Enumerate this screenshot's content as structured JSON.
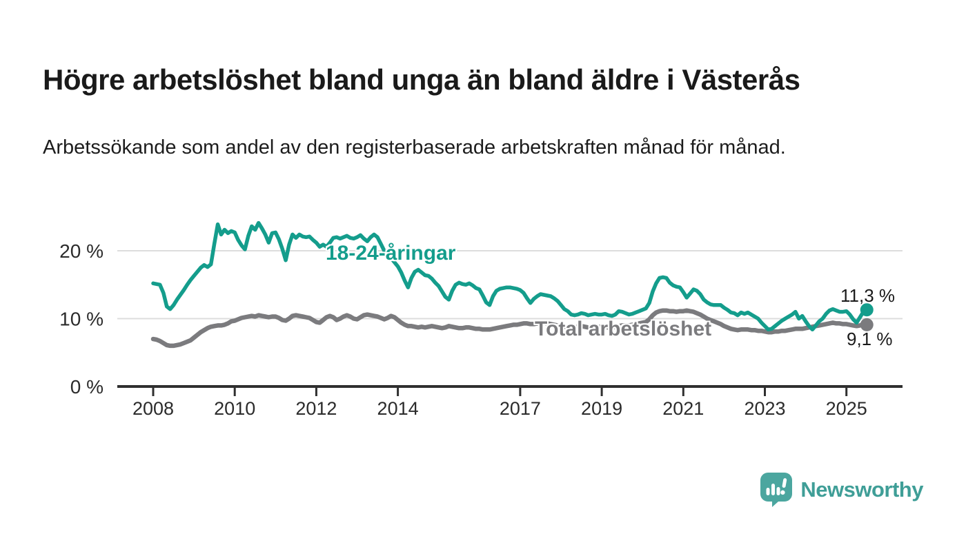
{
  "header": {
    "title": "Högre arbetslöshet bland unga än bland äldre i Västerås",
    "subtitle": "Arbetssökande som andel av den registerbaserade arbetskraften månad för månad."
  },
  "chart_data": {
    "type": "line",
    "title": "Högre arbetslöshet bland unga än bland äldre i Västerås",
    "subtitle": "Arbetssökande som andel av den registerbaserade arbetskraften månad för månad.",
    "frequency": "monthly",
    "x_start_year": 2008,
    "x_start_month": 1,
    "x_end_label": "2025-07",
    "x_tick_years": [
      2008,
      2010,
      2012,
      2014,
      2017,
      2019,
      2021,
      2023,
      2025
    ],
    "y_ticks": [
      {
        "value": 0,
        "label": "0 %"
      },
      {
        "value": 10,
        "label": "10 %"
      },
      {
        "value": 20,
        "label": "20 %"
      }
    ],
    "ylim": [
      0,
      26
    ],
    "grid": "horizontal",
    "legend_position": "inline-labels",
    "series": [
      {
        "name": "18-24-åringar",
        "color": "#149d8c",
        "end_label": "11,3 %",
        "last_value": 11.3,
        "values": [
          15.2,
          15.1,
          15.0,
          13.8,
          11.8,
          11.4,
          12.0,
          12.8,
          13.5,
          14.2,
          15.0,
          15.7,
          16.3,
          16.9,
          17.5,
          17.9,
          17.6,
          18.0,
          21.0,
          23.9,
          22.4,
          23.1,
          22.6,
          22.9,
          22.7,
          21.6,
          20.8,
          20.2,
          22.2,
          23.6,
          23.1,
          24.1,
          23.3,
          22.4,
          21.2,
          22.6,
          22.7,
          21.7,
          20.3,
          18.6,
          20.9,
          22.4,
          21.9,
          22.4,
          22.1,
          22.0,
          22.1,
          21.6,
          21.2,
          20.6,
          20.9,
          20.6,
          21.2,
          21.9,
          22.0,
          21.8,
          22.0,
          22.2,
          21.9,
          21.8,
          22.0,
          22.3,
          21.8,
          21.4,
          22.0,
          22.4,
          22.0,
          21.0,
          20.0,
          19.3,
          18.9,
          18.3,
          17.7,
          16.8,
          15.6,
          14.6,
          16.0,
          16.9,
          17.2,
          16.8,
          16.4,
          16.3,
          15.9,
          15.3,
          14.8,
          14.0,
          13.2,
          12.8,
          14.1,
          15.0,
          15.3,
          15.1,
          15.0,
          15.2,
          14.9,
          14.5,
          14.3,
          13.4,
          12.4,
          12.0,
          13.3,
          14.1,
          14.4,
          14.5,
          14.6,
          14.6,
          14.5,
          14.4,
          14.2,
          13.8,
          13.0,
          12.3,
          12.9,
          13.3,
          13.6,
          13.5,
          13.4,
          13.3,
          13.0,
          12.6,
          12.0,
          11.4,
          11.1,
          10.6,
          10.5,
          10.6,
          10.8,
          10.7,
          10.5,
          10.6,
          10.7,
          10.6,
          10.6,
          10.7,
          10.5,
          10.4,
          10.6,
          11.1,
          11.0,
          10.8,
          10.6,
          10.7,
          10.9,
          11.1,
          11.3,
          11.5,
          12.3,
          14.0,
          15.2,
          16.0,
          16.1,
          16.0,
          15.3,
          14.9,
          14.7,
          14.6,
          13.9,
          13.1,
          13.7,
          14.3,
          14.1,
          13.6,
          12.8,
          12.4,
          12.1,
          12.0,
          12.0,
          12.0,
          11.6,
          11.3,
          10.9,
          10.8,
          10.5,
          10.9,
          10.7,
          10.9,
          10.6,
          10.3,
          10.0,
          9.4,
          8.9,
          8.4,
          8.5,
          8.9,
          9.3,
          9.7,
          10.0,
          10.3,
          10.6,
          11.0,
          10.0,
          10.4,
          9.6,
          8.9,
          8.4,
          9.0,
          9.6,
          10.0,
          10.7,
          11.2,
          11.4,
          11.2,
          11.0,
          11.0,
          11.1,
          10.6,
          9.9,
          9.4,
          10.2,
          11.0,
          11.3
        ]
      },
      {
        "name": "Total arbetslöshet",
        "color": "#7b7b7e",
        "end_label": "9,1 %",
        "last_value": 9.1,
        "values": [
          7.0,
          6.9,
          6.7,
          6.4,
          6.1,
          6.0,
          6.0,
          6.1,
          6.2,
          6.4,
          6.6,
          6.8,
          7.2,
          7.6,
          8.0,
          8.3,
          8.6,
          8.8,
          8.9,
          9.0,
          9.0,
          9.1,
          9.3,
          9.6,
          9.7,
          9.9,
          10.1,
          10.2,
          10.3,
          10.4,
          10.3,
          10.5,
          10.4,
          10.3,
          10.2,
          10.3,
          10.3,
          10.1,
          9.8,
          9.7,
          10.0,
          10.4,
          10.5,
          10.4,
          10.3,
          10.2,
          10.1,
          9.8,
          9.5,
          9.4,
          9.8,
          10.2,
          10.4,
          10.2,
          9.8,
          10.0,
          10.3,
          10.5,
          10.3,
          10.0,
          9.9,
          10.2,
          10.5,
          10.6,
          10.5,
          10.4,
          10.3,
          10.1,
          9.9,
          10.1,
          10.4,
          10.2,
          9.8,
          9.4,
          9.1,
          8.9,
          8.9,
          8.8,
          8.7,
          8.8,
          8.7,
          8.8,
          8.9,
          8.8,
          8.7,
          8.6,
          8.7,
          8.9,
          8.8,
          8.7,
          8.6,
          8.6,
          8.7,
          8.7,
          8.6,
          8.5,
          8.5,
          8.4,
          8.4,
          8.4,
          8.5,
          8.6,
          8.7,
          8.8,
          8.9,
          9.0,
          9.1,
          9.1,
          9.2,
          9.3,
          9.3,
          9.2,
          9.2,
          9.3,
          9.4,
          9.4,
          9.3,
          9.2,
          9.1,
          9.0,
          8.9,
          8.8,
          8.8,
          8.7,
          8.7,
          8.8,
          8.9,
          8.8,
          8.7,
          8.7,
          8.8,
          8.8,
          8.8,
          8.8,
          8.7,
          8.7,
          8.8,
          8.9,
          9.0,
          9.0,
          9.0,
          9.1,
          9.2,
          9.3,
          9.4,
          9.5,
          9.9,
          10.5,
          10.9,
          11.1,
          11.2,
          11.2,
          11.1,
          11.1,
          11.0,
          11.1,
          11.1,
          11.2,
          11.1,
          11.0,
          10.8,
          10.6,
          10.3,
          10.0,
          9.8,
          9.6,
          9.4,
          9.2,
          8.9,
          8.7,
          8.5,
          8.4,
          8.3,
          8.4,
          8.4,
          8.4,
          8.3,
          8.3,
          8.2,
          8.2,
          8.1,
          8.0,
          8.0,
          8.1,
          8.1,
          8.2,
          8.2,
          8.3,
          8.4,
          8.5,
          8.5,
          8.5,
          8.6,
          8.7,
          8.8,
          8.9,
          9.0,
          9.1,
          9.2,
          9.3,
          9.4,
          9.3,
          9.3,
          9.2,
          9.2,
          9.1,
          9.0,
          8.9,
          9.0,
          9.2,
          9.1
        ]
      }
    ],
    "colors": {
      "grid": "#dcdcdc",
      "axis": "#2f2f2f",
      "tick_label": "#2b2b2b",
      "value_label": "#1a1a1a"
    }
  },
  "footer": {
    "brand": "Newsworthy",
    "logo_icon": "speech-bubble-bar-chart-icon",
    "brand_color": "#3f9e97",
    "icon_color": "#4ba69f"
  }
}
